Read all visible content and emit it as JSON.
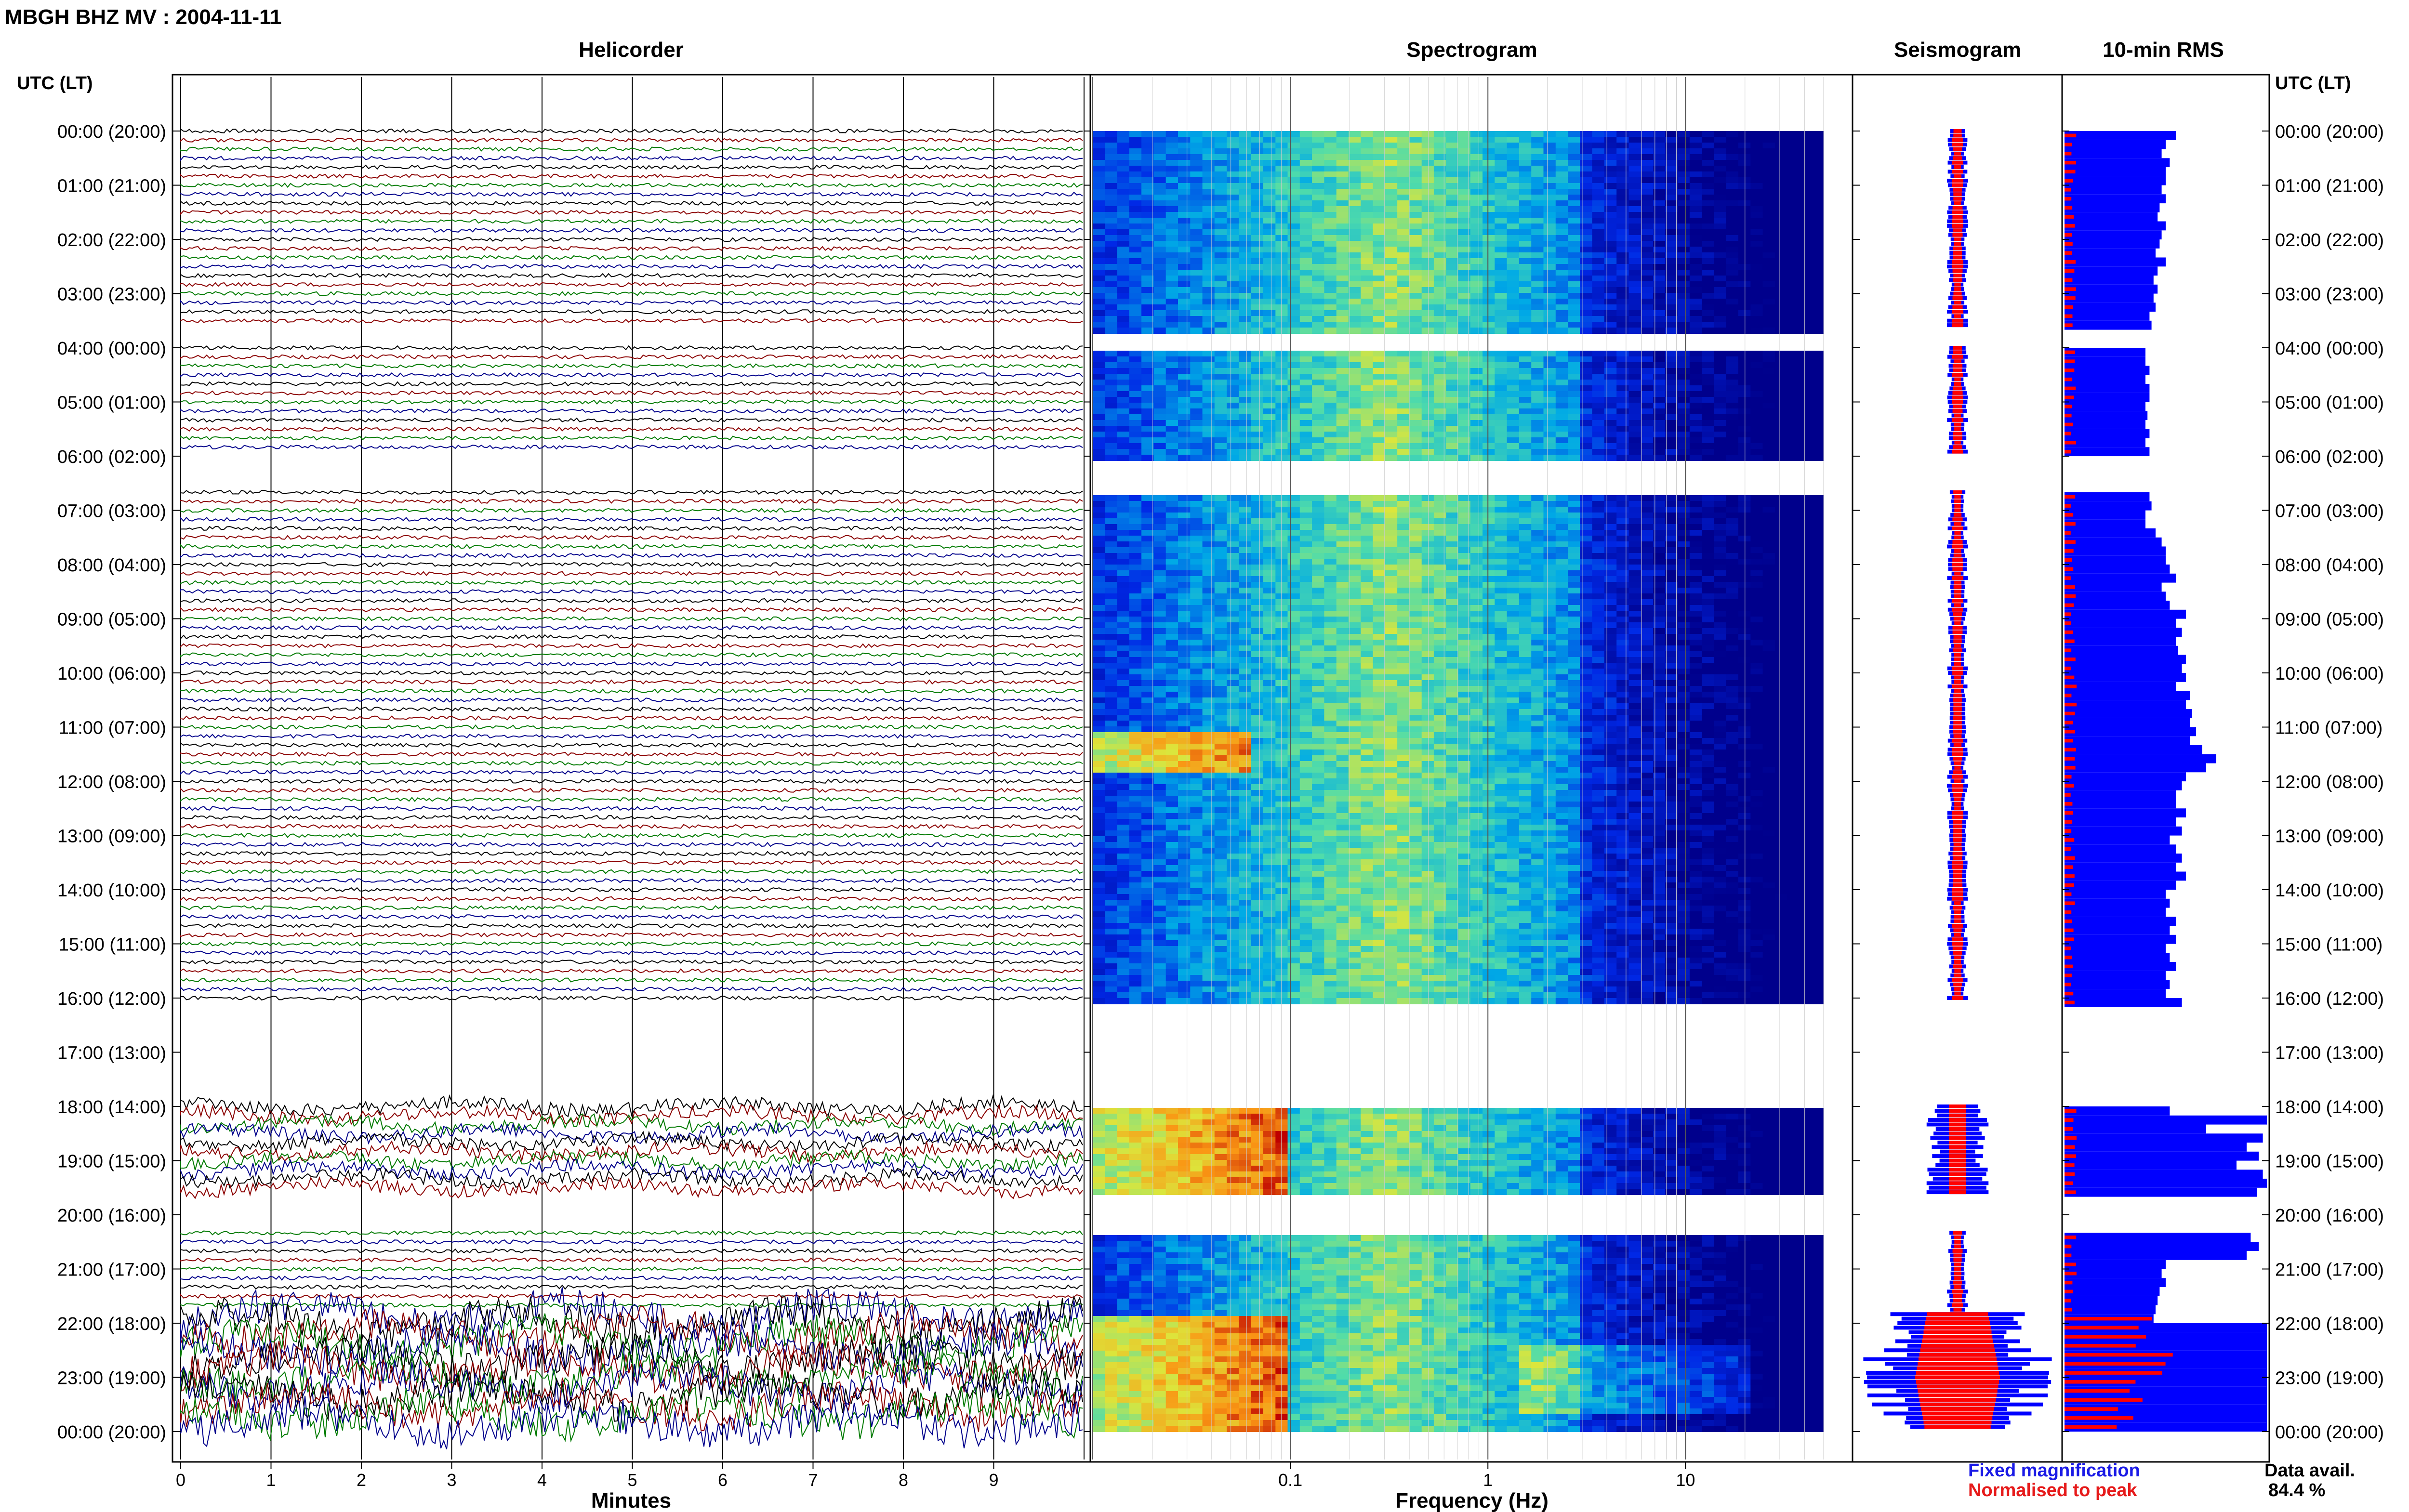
{
  "header": {
    "station_title": "MBGH BHZ MV : 2004-11-11"
  },
  "panels": {
    "helicorder": "Helicorder",
    "spectrogram": "Spectrogram",
    "seismogram": "Seismogram",
    "rms": "10-min RMS"
  },
  "axis": {
    "utc_label_left": "UTC (LT)",
    "utc_label_right": "UTC (LT)",
    "time_labels": [
      "00:00 (20:00)",
      "01:00 (21:00)",
      "02:00 (22:00)",
      "03:00 (23:00)",
      "04:00 (00:00)",
      "05:00 (01:00)",
      "06:00 (02:00)",
      "07:00 (03:00)",
      "08:00 (04:00)",
      "09:00 (05:00)",
      "10:00 (06:00)",
      "11:00 (07:00)",
      "12:00 (08:00)",
      "13:00 (09:00)",
      "14:00 (10:00)",
      "15:00 (11:00)",
      "16:00 (12:00)",
      "17:00 (13:00)",
      "18:00 (14:00)",
      "19:00 (15:00)",
      "20:00 (16:00)",
      "21:00 (17:00)",
      "22:00 (18:00)",
      "23:00 (19:00)",
      "00:00 (20:00)"
    ],
    "minutes_label": "Minutes",
    "minute_ticks": [
      "0",
      "1",
      "2",
      "3",
      "4",
      "5",
      "6",
      "7",
      "8",
      "9"
    ],
    "frequency_label": "Frequency (Hz)",
    "frequency_ticks": [
      "0.1",
      "1",
      "10"
    ]
  },
  "legend": {
    "fixed": "Fixed magnification",
    "normalised": "Normalised to peak",
    "fixed_color": "#1a1ae6",
    "normalised_color": "#e61a1a"
  },
  "availability": {
    "label": "Data avail.",
    "value": "84.4 %"
  },
  "colors": {
    "trace_cycle": [
      "#000000",
      "#8b0000",
      "#007a00",
      "#00008b"
    ],
    "rms_fixed": "#0000ff",
    "rms_normalised": "#ff0000",
    "seis_fixed": "#0000ff",
    "seis_normalised": "#ff0000"
  },
  "chart_data": {
    "type": "heatmap",
    "title": "MBGH BHZ MV : 2004-11-11",
    "data_availability_percent": 84.4,
    "time_range_hours": [
      0,
      24
    ],
    "frequency_range_hz": [
      0.01,
      50
    ],
    "frequency_scale": "log",
    "helicorder_minutes_range": [
      0,
      10
    ],
    "data_gaps_hours": [
      [
        3.65,
        3.95
      ],
      [
        6.0,
        6.65
      ],
      [
        16.05,
        17.95
      ],
      [
        19.6,
        20.3
      ]
    ],
    "rms_10min": {
      "fixed_magnification_relative": [
        0.55,
        0.5,
        0.48,
        0.52,
        0.5,
        0.5,
        0.48,
        0.5,
        0.47,
        0.46,
        0.5,
        0.48,
        0.47,
        0.45,
        0.5,
        0.46,
        0.44,
        0.46,
        0.44,
        0.45,
        0.42,
        0.43,
        0.4,
        0.4,
        0.42,
        0.4,
        0.42,
        0.42,
        0.4,
        0.41,
        0.4,
        0.42,
        0.4,
        0.42,
        0.42,
        0.43,
        0.4,
        0.4,
        0.45,
        0.48,
        0.5,
        0.5,
        0.52,
        0.55,
        0.48,
        0.5,
        0.52,
        0.6,
        0.55,
        0.58,
        0.55,
        0.56,
        0.6,
        0.58,
        0.6,
        0.55,
        0.62,
        0.6,
        0.63,
        0.62,
        0.65,
        0.62,
        0.68,
        0.75,
        0.7,
        0.6,
        0.58,
        0.55,
        0.55,
        0.6,
        0.55,
        0.58,
        0.52,
        0.55,
        0.58,
        0.55,
        0.6,
        0.55,
        0.5,
        0.52,
        0.5,
        0.55,
        0.52,
        0.55,
        0.5,
        0.52,
        0.55,
        0.5,
        0.52,
        0.5,
        0.58,
        0.52,
        1.0,
        0.7,
        0.98,
        0.9,
        0.96,
        0.85,
        0.98,
        1.0,
        0.95,
        0.92,
        0.96,
        0.9,
        0.5,
        0.48,
        0.5,
        0.47,
        0.46,
        0.45,
        0.44,
        1.0,
        1.0,
        1.0,
        1.0,
        1.0,
        1.0,
        1.0,
        1.0,
        1.0,
        1.0,
        1.0,
        1.0,
        1.0,
        1.0
      ]
    },
    "spectrogram_features": [
      {
        "hours": [
          11.0,
          11.8
        ],
        "freq_hz": [
          0.01,
          0.06
        ],
        "level": "high"
      },
      {
        "hours": [
          18.0,
          19.6
        ],
        "freq_hz": [
          0.01,
          0.1
        ],
        "level": "high"
      },
      {
        "hours": [
          21.8,
          24.0
        ],
        "freq_hz": [
          0.01,
          0.1
        ],
        "level": "high"
      },
      {
        "hours": [
          22.4,
          23.6
        ],
        "freq_hz": [
          1.5,
          20
        ],
        "level": "elevated"
      }
    ]
  }
}
